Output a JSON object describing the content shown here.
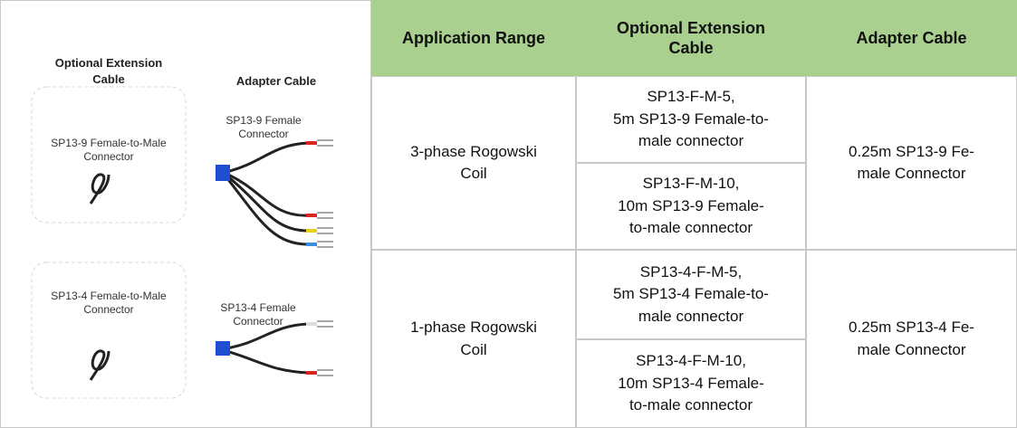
{
  "image": {
    "extension_heading": "Optional Extension Cable",
    "adapter_heading": "Adapter Cable",
    "items": [
      {
        "extension_label": [
          "SP13-9 Female-to-Male",
          "Connector"
        ],
        "adapter_label": [
          "SP13-9 Female",
          "Connector"
        ]
      },
      {
        "extension_label": [
          "SP13-4 Female-to-Male",
          "Connector"
        ],
        "adapter_label": [
          "SP13-4 Female",
          "Connector"
        ]
      }
    ]
  },
  "table": {
    "headers": [
      "Application Range",
      "Optional Extension Cable",
      "Adapter Cable"
    ],
    "rows": [
      {
        "application": [
          "3-phase Rogowski",
          "Coil"
        ],
        "extensions": [
          [
            "SP13-F-M-5,",
            "5m SP13-9 Female-to-",
            "male connector"
          ],
          [
            "SP13-F-M-10,",
            "10m SP13-9 Female-",
            "to-male connector"
          ]
        ],
        "adapter": [
          "0.25m SP13-9 Fe-",
          "male Connector"
        ]
      },
      {
        "application": [
          "1-phase Rogowski",
          "Coil"
        ],
        "extensions": [
          [
            "SP13-4-F-M-5,",
            "5m SP13-4 Female-to-",
            "male connector"
          ],
          [
            "SP13-4-F-M-10,",
            "10m SP13-4 Female-",
            "to-male connector"
          ]
        ],
        "adapter": [
          "0.25m SP13-4 Fe-",
          "male Connector"
        ]
      }
    ]
  }
}
